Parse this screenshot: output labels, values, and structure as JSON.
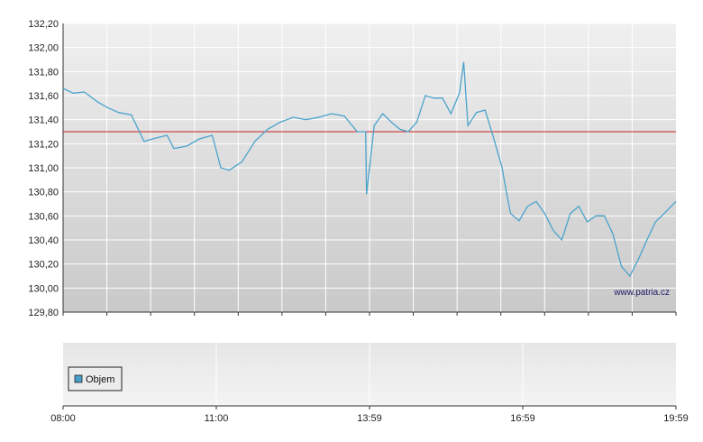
{
  "watermark": "www.patria.cz",
  "legend": {
    "label": "Objem",
    "color": "#4a9ec8"
  },
  "chart_data": [
    {
      "type": "line",
      "title": "",
      "xlabel": "",
      "ylabel": "",
      "ylim": [
        129.8,
        132.2
      ],
      "y_ticks": [
        "132,20",
        "132,00",
        "131,80",
        "131,60",
        "131,40",
        "131,20",
        "131,00",
        "130,80",
        "130,60",
        "130,40",
        "130,20",
        "130,00",
        "129,80"
      ],
      "y_tick_values": [
        132.2,
        132.0,
        131.8,
        131.6,
        131.4,
        131.2,
        131.0,
        130.8,
        130.6,
        130.4,
        130.2,
        130.0,
        129.8
      ],
      "reference_line": {
        "value": 131.3,
        "color": "#cc2222"
      },
      "line_color": "#4aa3cc",
      "grid": true,
      "series": [
        {
          "x": [
            "08:00",
            "08:12",
            "08:25",
            "08:40",
            "08:52",
            "09:05",
            "09:20",
            "09:35",
            "09:50",
            "10:02",
            "10:10",
            "10:25",
            "10:40",
            "10:55",
            "11:05",
            "11:15",
            "11:30",
            "11:45",
            "12:00",
            "12:15",
            "12:30",
            "12:45",
            "13:00",
            "13:15",
            "13:30",
            "13:45",
            "13:55",
            "13:56",
            "14:05",
            "14:15",
            "14:25",
            "14:35",
            "14:45",
            "14:55",
            "15:05",
            "15:15",
            "15:25",
            "15:35",
            "15:45",
            "15:50",
            "15:55",
            "16:05",
            "16:15",
            "16:25",
            "16:35",
            "16:40",
            "16:45",
            "16:55",
            "17:05",
            "17:15",
            "17:25",
            "17:35",
            "17:45",
            "17:55",
            "18:05",
            "18:15",
            "18:25",
            "18:35",
            "18:45",
            "18:55",
            "19:05",
            "19:15",
            "19:25",
            "19:35",
            "19:45",
            "19:59"
          ],
          "values": [
            131.66,
            131.62,
            131.63,
            131.55,
            131.5,
            131.46,
            131.44,
            131.22,
            131.25,
            131.27,
            131.16,
            131.18,
            131.24,
            131.27,
            131.0,
            130.98,
            131.05,
            131.22,
            131.32,
            131.38,
            131.42,
            131.4,
            131.42,
            131.45,
            131.43,
            131.3,
            131.3,
            130.78,
            131.35,
            131.45,
            131.38,
            131.32,
            131.3,
            131.38,
            131.6,
            131.58,
            131.58,
            131.45,
            131.62,
            131.88,
            131.35,
            131.46,
            131.48,
            131.25,
            131.0,
            130.8,
            130.62,
            130.56,
            130.68,
            130.72,
            130.62,
            130.48,
            130.4,
            130.62,
            130.68,
            130.55,
            130.6,
            130.6,
            130.45,
            130.18,
            130.1,
            130.24,
            130.4,
            130.55,
            130.62,
            130.72
          ]
        }
      ],
      "x_tick_labels": []
    },
    {
      "type": "bar",
      "title": "",
      "series": [
        {
          "name": "Objem",
          "values": []
        }
      ],
      "x_tick_labels": [
        "08:00",
        "11:00",
        "13:59",
        "16:59",
        "19:59"
      ]
    }
  ]
}
